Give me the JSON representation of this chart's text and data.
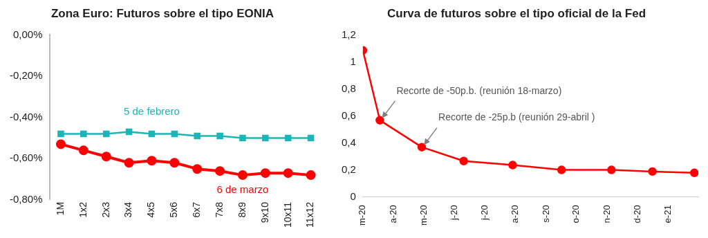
{
  "chart_data": [
    {
      "type": "line",
      "title": "Zona Euro: Futuros sobre el tipo EONIA",
      "categories": [
        "1M",
        "1x2",
        "2x3",
        "3x4",
        "4x5",
        "5x6",
        "6x7",
        "7x8",
        "8x9",
        "9x10",
        "10x11",
        "11x12"
      ],
      "series": [
        {
          "name": "5 de febrero",
          "color": "#1db5b8",
          "marker": "square",
          "values": [
            -0.48,
            -0.48,
            -0.48,
            -0.47,
            -0.48,
            -0.48,
            -0.49,
            -0.49,
            -0.5,
            -0.5,
            -0.5,
            -0.5
          ]
        },
        {
          "name": "6 de marzo",
          "color": "#ff0000",
          "marker": "circle",
          "values": [
            -0.53,
            -0.56,
            -0.59,
            -0.62,
            -0.61,
            -0.62,
            -0.65,
            -0.66,
            -0.68,
            -0.67,
            -0.67,
            -0.68
          ]
        }
      ],
      "ylim": [
        -0.8,
        0
      ],
      "yticks": [
        {
          "value": -0.8,
          "label": "-0,80%"
        },
        {
          "value": -0.6,
          "label": "-0,60%"
        },
        {
          "value": -0.4,
          "label": "-0,40%"
        },
        {
          "value": -0.2,
          "label": "-0,20%"
        },
        {
          "value": 0,
          "label": "0,00%"
        }
      ]
    },
    {
      "type": "line",
      "title": "Curva de futuros sobre el tipo oficial de la Fed",
      "x": [
        "2020-03-01",
        "2020-03-18",
        "2020-04-29",
        "2020-06-10",
        "2020-07-29",
        "2020-09-16",
        "2020-11-05",
        "2020-12-16",
        "2021-01-27"
      ],
      "series": [
        {
          "color": "#ff0000",
          "marker": "circle",
          "values": [
            1.085,
            0.567,
            0.368,
            0.265,
            0.235,
            0.199,
            0.199,
            0.187,
            0.177
          ]
        }
      ],
      "xlim": [
        "2020-03-01",
        "2021-01-31"
      ],
      "xticks": [
        {
          "value": "2020-03-01",
          "label": "m-20"
        },
        {
          "value": "2020-04-01",
          "label": "a-20"
        },
        {
          "value": "2020-05-01",
          "label": "m-20"
        },
        {
          "value": "2020-06-01",
          "label": "j-20"
        },
        {
          "value": "2020-07-01",
          "label": "j-20"
        },
        {
          "value": "2020-08-01",
          "label": "a-20"
        },
        {
          "value": "2020-09-01",
          "label": "s-20"
        },
        {
          "value": "2020-10-01",
          "label": "o-20"
        },
        {
          "value": "2020-11-01",
          "label": "n-20"
        },
        {
          "value": "2020-12-01",
          "label": "d-20"
        },
        {
          "value": "2021-01-01",
          "label": "e-21"
        }
      ],
      "ylim": [
        0,
        1.2
      ],
      "yticks": [
        0,
        {
          "value": 0.2,
          "label": "0,2"
        },
        {
          "value": 0.4,
          "label": "0,4"
        },
        {
          "value": 0.6,
          "label": "0,6"
        },
        {
          "value": 0.8,
          "label": "0,8"
        },
        1,
        {
          "value": 1.2,
          "label": "1,2"
        }
      ],
      "annotations": [
        {
          "text": "Recorte de -50p.b. (reunión 18-marzo)",
          "x": "2020-03-18",
          "y": 0.567
        },
        {
          "text": "Recorte de -25p.b (reunión 29-abril )",
          "x": "2020-04-29",
          "y": 0.368
        }
      ]
    }
  ]
}
